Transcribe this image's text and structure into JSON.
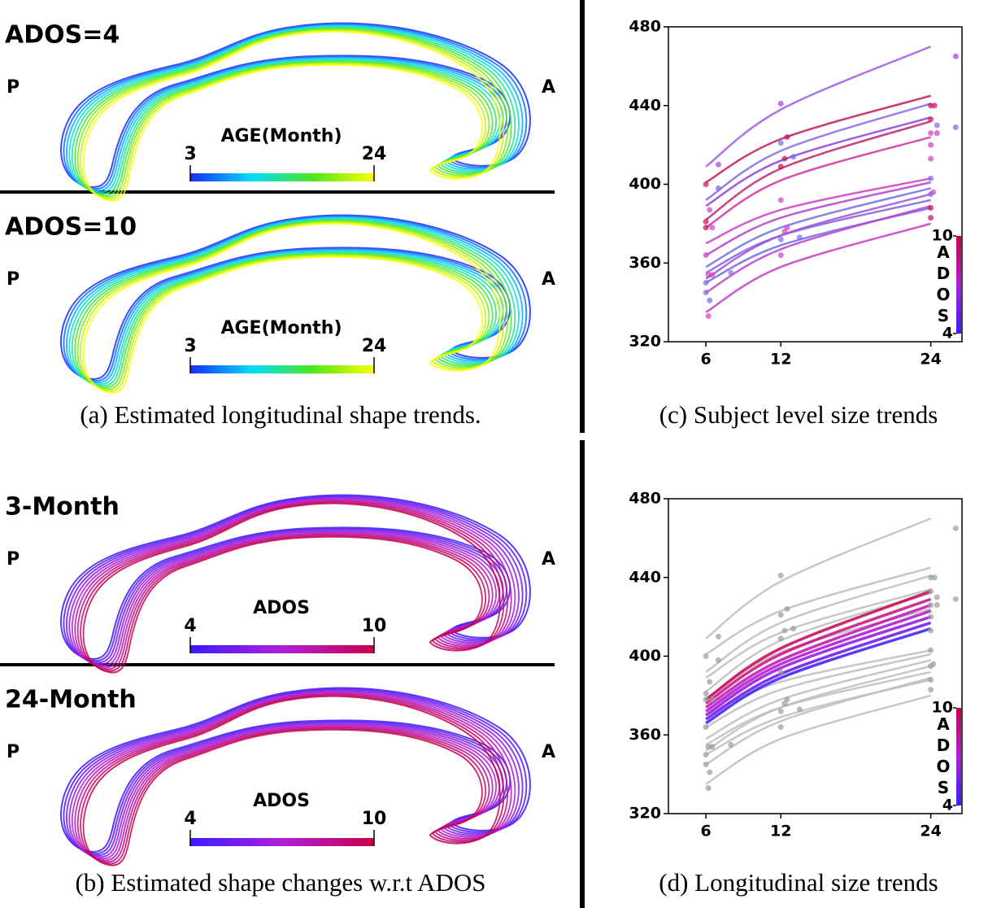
{
  "panels": [
    {
      "caption": "(a) Estimated longitudinal shape trends.",
      "rows": [
        {
          "label": "ADOS=4",
          "posterior": "P",
          "anterior": "A",
          "colorbar": {
            "title": "AGE(Month)",
            "ticks": [
              3,
              24
            ],
            "colors": [
              "#1a2cff",
              "#00dcff",
              "#4ee81a",
              "#ffff00"
            ]
          }
        },
        {
          "label": "ADOS=10",
          "posterior": "P",
          "anterior": "A",
          "colorbar": {
            "title": "AGE(Month)",
            "ticks": [
              3,
              24
            ],
            "colors": [
              "#1a2cff",
              "#00dcff",
              "#4ee81a",
              "#ffff00"
            ]
          }
        }
      ]
    },
    {
      "caption": "(b) Estimated shape changes w.r.t ADOS",
      "rows": [
        {
          "label": "3-Month",
          "posterior": "P",
          "anterior": "A",
          "colorbar": {
            "title": "ADOS",
            "ticks": [
              4,
              10
            ],
            "colors": [
              "#3a1aff",
              "#b020d8",
              "#c8004a"
            ]
          }
        },
        {
          "label": "24-Month",
          "posterior": "P",
          "anterior": "A",
          "colorbar": {
            "title": "ADOS",
            "ticks": [
              4,
              10
            ],
            "colors": [
              "#3a1aff",
              "#b020d8",
              "#c8004a"
            ]
          }
        }
      ]
    }
  ],
  "chart_data": [
    {
      "type": "line",
      "caption": "(c) Subject level size trends",
      "xlim": [
        3,
        26.5
      ],
      "xticks": [
        6,
        12,
        24
      ],
      "ylim": [
        320,
        480
      ],
      "yticks": [
        320,
        360,
        400,
        440,
        480
      ],
      "colorbar": {
        "title": "ADOS",
        "ticks": [
          4,
          10
        ],
        "colors": [
          "#3a1aff",
          "#b020d8",
          "#c8004a"
        ]
      },
      "series": [
        {
          "color": "#9a5be8",
          "x": [
            6,
            12,
            24
          ],
          "values": [
            409,
            438,
            470
          ]
        },
        {
          "color": "#c2185b",
          "x": [
            6,
            12,
            24
          ],
          "values": [
            401,
            423,
            445
          ]
        },
        {
          "color": "#8a6ae8",
          "x": [
            6,
            12,
            24
          ],
          "values": [
            392,
            417,
            441
          ]
        },
        {
          "color": "#9040e0",
          "x": [
            6,
            12,
            24
          ],
          "values": [
            389,
            412,
            434
          ]
        },
        {
          "color": "#c02070",
          "x": [
            6,
            12,
            24
          ],
          "values": [
            382,
            408,
            432
          ]
        },
        {
          "color": "#d030a0",
          "x": [
            6,
            12,
            24
          ],
          "values": [
            378,
            402,
            424
          ]
        },
        {
          "color": "#d040c0",
          "x": [
            6,
            12,
            24
          ],
          "values": [
            370,
            387,
            403
          ]
        },
        {
          "color": "#b040d0",
          "x": [
            6,
            12,
            24
          ],
          "values": [
            364,
            383,
            401
          ]
        },
        {
          "color": "#7070e8",
          "x": [
            6,
            12,
            24
          ],
          "values": [
            358,
            378,
            398
          ]
        },
        {
          "color": "#8060e0",
          "x": [
            6,
            12,
            24
          ],
          "values": [
            355,
            374,
            392
          ]
        },
        {
          "color": "#a050d8",
          "x": [
            6,
            12,
            24
          ],
          "values": [
            352,
            374,
            395
          ]
        },
        {
          "color": "#6a6ae8",
          "x": [
            6,
            12,
            24
          ],
          "values": [
            350,
            369,
            388
          ]
        },
        {
          "color": "#c040d0",
          "x": [
            6,
            12,
            24
          ],
          "values": [
            345,
            367,
            389
          ]
        },
        {
          "color": "#c838c8",
          "x": [
            6,
            12,
            24
          ],
          "values": [
            335,
            358,
            380
          ]
        }
      ],
      "points": {
        "x": [
          6,
          6,
          6,
          6.3,
          6.5,
          6,
          6.2,
          6.5,
          6,
          6,
          6.3,
          6.2,
          7,
          7,
          8,
          12,
          12,
          12.3,
          12,
          12.5,
          12,
          12,
          12.3,
          12.5,
          12,
          13,
          13.5,
          24,
          24,
          24,
          24.3,
          24,
          24.5,
          24,
          24,
          24,
          24.2,
          24,
          24,
          26,
          26,
          24.5
        ],
        "values": [
          400,
          381,
          378,
          387,
          378,
          364,
          354,
          354,
          350,
          345,
          341,
          333,
          410,
          398,
          355,
          441,
          421,
          413,
          409,
          424,
          392,
          372,
          376,
          378,
          364,
          414,
          373,
          440,
          433,
          426,
          440,
          420,
          426,
          413,
          403,
          395,
          396,
          388,
          383,
          465,
          429,
          430
        ],
        "colors": [
          "#c8105a",
          "#c8105a",
          "#c8105a",
          "#d040c0",
          "#d040c0",
          "#d040c0",
          "#d040c0",
          "#d040c0",
          "#7a6af0",
          "#7a6af0",
          "#7a6af0",
          "#d040c0",
          "#a040e0",
          "#7a6af0",
          "#7a6af0",
          "#a040e0",
          "#7a6af0",
          "#c8105a",
          "#c8105a",
          "#c8105a",
          "#d040c0",
          "#7a6af0",
          "#d040c0",
          "#d040c0",
          "#d040c0",
          "#7a6af0",
          "#7a6af0",
          "#c8105a",
          "#c8105a",
          "#d040c0",
          "#c8105a",
          "#d040c0",
          "#d040c0",
          "#d040c0",
          "#7a6af0",
          "#7a6af0",
          "#d040c0",
          "#c8105a",
          "#c8105a",
          "#a040e0",
          "#7a6af0",
          "#7a6af0"
        ]
      }
    },
    {
      "type": "line",
      "caption": "(d) Longitudinal size trends",
      "xlim": [
        3,
        26.5
      ],
      "xticks": [
        6,
        12,
        24
      ],
      "ylim": [
        320,
        480
      ],
      "yticks": [
        320,
        360,
        400,
        440,
        480
      ],
      "colorbar": {
        "title": "ADOS",
        "ticks": [
          4,
          10
        ],
        "colors": [
          "#3a1aff",
          "#b020d8",
          "#c8004a"
        ]
      },
      "series": [
        {
          "color": "#bdbdbd",
          "x": [
            6,
            12,
            24
          ],
          "values": [
            409,
            438,
            470
          ]
        },
        {
          "color": "#bdbdbd",
          "x": [
            6,
            12,
            24
          ],
          "values": [
            401,
            423,
            445
          ]
        },
        {
          "color": "#bdbdbd",
          "x": [
            6,
            12,
            24
          ],
          "values": [
            392,
            417,
            441
          ]
        },
        {
          "color": "#bdbdbd",
          "x": [
            6,
            12,
            24
          ],
          "values": [
            389,
            412,
            434
          ]
        },
        {
          "color": "#bdbdbd",
          "x": [
            6,
            12,
            24
          ],
          "values": [
            382,
            408,
            432
          ]
        },
        {
          "color": "#bdbdbd",
          "x": [
            6,
            12,
            24
          ],
          "values": [
            378,
            402,
            424
          ]
        },
        {
          "color": "#bdbdbd",
          "x": [
            6,
            12,
            24
          ],
          "values": [
            370,
            387,
            403
          ]
        },
        {
          "color": "#bdbdbd",
          "x": [
            6,
            12,
            24
          ],
          "values": [
            364,
            383,
            401
          ]
        },
        {
          "color": "#bdbdbd",
          "x": [
            6,
            12,
            24
          ],
          "values": [
            358,
            378,
            398
          ]
        },
        {
          "color": "#bdbdbd",
          "x": [
            6,
            12,
            24
          ],
          "values": [
            355,
            374,
            392
          ]
        },
        {
          "color": "#bdbdbd",
          "x": [
            6,
            12,
            24
          ],
          "values": [
            352,
            374,
            395
          ]
        },
        {
          "color": "#bdbdbd",
          "x": [
            6,
            12,
            24
          ],
          "values": [
            350,
            369,
            388
          ]
        },
        {
          "color": "#bdbdbd",
          "x": [
            6,
            12,
            24
          ],
          "values": [
            345,
            367,
            389
          ]
        },
        {
          "color": "#bdbdbd",
          "x": [
            6,
            12,
            24
          ],
          "values": [
            335,
            358,
            380
          ]
        },
        {
          "color": "#3a1aff",
          "width": 3.5,
          "x": [
            6,
            12,
            24
          ],
          "values": [
            366,
            389,
            414
          ]
        },
        {
          "color": "#6a10f0",
          "width": 3.5,
          "x": [
            6,
            12,
            24
          ],
          "values": [
            368,
            391,
            417
          ]
        },
        {
          "color": "#9010e0",
          "width": 3.5,
          "x": [
            6,
            12,
            24
          ],
          "values": [
            370,
            394,
            420
          ]
        },
        {
          "color": "#b010d0",
          "width": 3.5,
          "x": [
            6,
            12,
            24
          ],
          "values": [
            372,
            396,
            423
          ]
        },
        {
          "color": "#c010b0",
          "width": 3.5,
          "x": [
            6,
            12,
            24
          ],
          "values": [
            374,
            398,
            426
          ]
        },
        {
          "color": "#c80a80",
          "width": 3.5,
          "x": [
            6,
            12,
            24
          ],
          "values": [
            376,
            401,
            429
          ]
        },
        {
          "color": "#c80050",
          "width": 3.5,
          "x": [
            6,
            12,
            24
          ],
          "values": [
            378,
            404,
            433
          ]
        }
      ],
      "points": {
        "x": [
          6,
          6,
          6,
          6.3,
          6.5,
          6,
          6.2,
          6.5,
          6,
          6,
          6.3,
          6.2,
          7,
          7,
          8,
          12,
          12,
          12.3,
          12,
          12.5,
          12,
          12,
          12.3,
          12.5,
          12,
          13,
          13.5,
          24,
          24,
          24,
          24.3,
          24,
          24.5,
          24,
          24,
          24,
          24.2,
          24,
          24,
          26,
          26,
          24.5
        ],
        "values": [
          400,
          381,
          378,
          387,
          378,
          364,
          354,
          354,
          350,
          345,
          341,
          333,
          410,
          398,
          355,
          441,
          421,
          413,
          409,
          424,
          392,
          372,
          376,
          378,
          364,
          414,
          373,
          440,
          433,
          426,
          440,
          420,
          426,
          413,
          403,
          395,
          396,
          388,
          383,
          465,
          429,
          430
        ],
        "color": "#9a9a9a"
      }
    }
  ]
}
